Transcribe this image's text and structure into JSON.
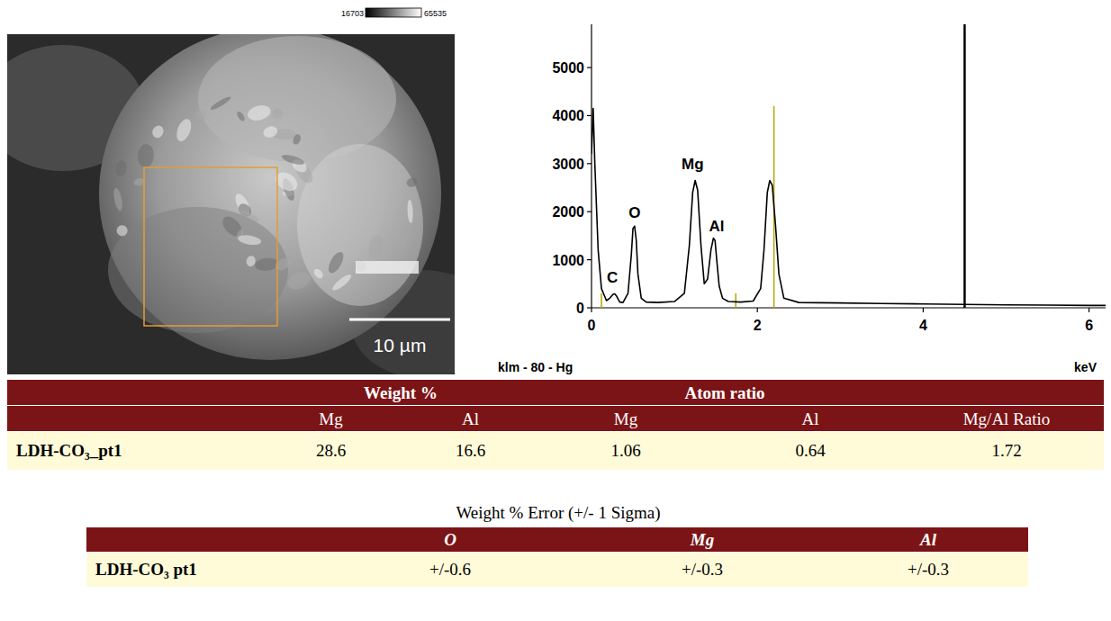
{
  "image": {
    "colorbar_min": 16703,
    "colorbar_max": 65535,
    "scale_bar": "10 µm"
  },
  "chart_data": {
    "type": "line",
    "x_label": "keV",
    "caption": "klm - 80 - Hg",
    "color": "#000000",
    "grid": false,
    "xlim": [
      0,
      6.2
    ],
    "xticks": [
      0,
      2,
      4,
      6
    ],
    "ylim": [
      0,
      5900
    ],
    "yticks": [
      0,
      1000,
      2000,
      3000,
      4000,
      5000
    ],
    "x": [
      0,
      0.02,
      0.04,
      0.08,
      0.12,
      0.18,
      0.22,
      0.26,
      0.28,
      0.3,
      0.34,
      0.38,
      0.44,
      0.48,
      0.5,
      0.52,
      0.54,
      0.56,
      0.6,
      0.66,
      0.8,
      1.0,
      1.12,
      1.18,
      1.22,
      1.25,
      1.28,
      1.32,
      1.36,
      1.4,
      1.44,
      1.47,
      1.49,
      1.51,
      1.54,
      1.58,
      1.65,
      1.8,
      1.95,
      2.04,
      2.08,
      2.12,
      2.15,
      2.18,
      2.22,
      2.26,
      2.32,
      2.5,
      3.0,
      3.5,
      4.0,
      4.5,
      5.0,
      5.5,
      6.0,
      6.2
    ],
    "values": [
      3200,
      4150,
      3000,
      1200,
      400,
      150,
      200,
      280,
      290,
      250,
      120,
      110,
      300,
      1100,
      1650,
      1700,
      1400,
      700,
      200,
      120,
      110,
      130,
      300,
      1300,
      2400,
      2650,
      2450,
      1300,
      500,
      600,
      1200,
      1450,
      1400,
      1000,
      450,
      200,
      130,
      120,
      140,
      400,
      1200,
      2400,
      2650,
      2550,
      1700,
      700,
      200,
      110,
      100,
      90,
      80,
      70,
      60,
      55,
      50,
      50
    ],
    "annotations": [
      {
        "text": "C",
        "x": 0.25,
        "y": 640
      },
      {
        "text": "O",
        "x": 0.52,
        "y": 1980
      },
      {
        "text": "Mg",
        "x": 1.22,
        "y": 3000
      },
      {
        "text": "Al",
        "x": 1.51,
        "y": 1700
      }
    ],
    "markers": [
      {
        "x": 4.5,
        "y": 5900,
        "color": "#000000"
      },
      {
        "x": 2.2,
        "y": 4200,
        "color": "#b8a200"
      },
      {
        "x": 0.12,
        "y": 300,
        "color": "#b8a200"
      },
      {
        "x": 1.74,
        "y": 300,
        "color": "#b8a200"
      }
    ]
  },
  "table": {
    "group_headers": [
      "Weight %",
      "Atom ratio"
    ],
    "columns": [
      "Mg",
      "Al",
      "Mg",
      "Al",
      "Mg/Al Ratio"
    ],
    "rows": [
      {
        "label": "LDH-CO₃_pt1",
        "values": [
          28.6,
          16.6,
          1.06,
          0.64,
          1.72
        ]
      }
    ]
  },
  "error_table": {
    "title": "Weight % Error (+/- 1 Sigma)",
    "columns": [
      "O",
      "Mg",
      "Al"
    ],
    "rows": [
      {
        "label": "LDH-CO₃ pt1",
        "values": [
          "+/-0.6",
          "+/-0.3",
          "+/-0.3"
        ]
      }
    ]
  }
}
